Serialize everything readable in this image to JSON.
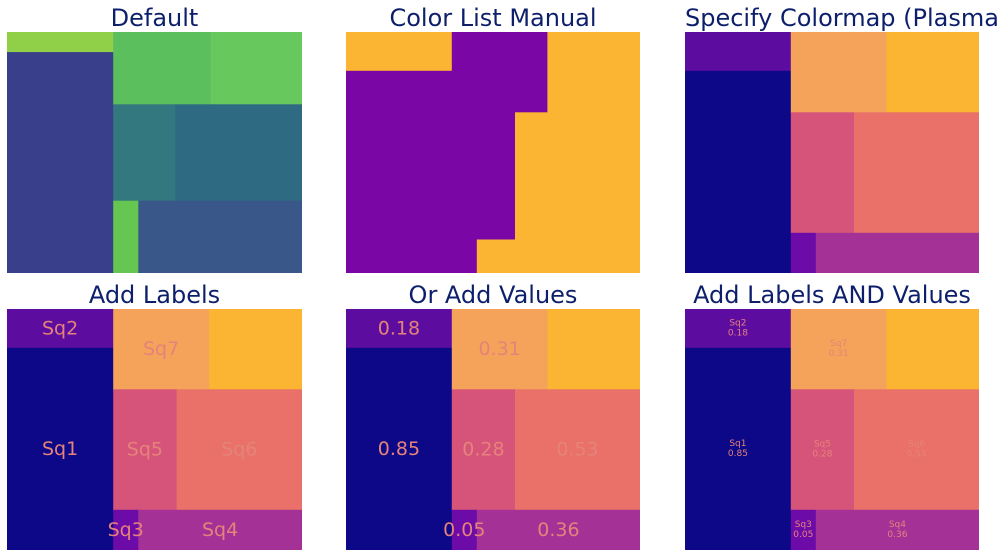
{
  "chart_data": [
    {
      "type": "treemap",
      "title": "Default",
      "squares": [
        {
          "x": 0,
          "y": 0,
          "w": 3.6,
          "h": 0.75,
          "color": "#8fd048"
        },
        {
          "x": 0,
          "y": 0.75,
          "w": 3.6,
          "h": 8.25,
          "color": "#3a3f8c"
        },
        {
          "x": 3.6,
          "y": 0,
          "w": 3.3,
          "h": 2.7,
          "color": "#5cbf5e"
        },
        {
          "x": 6.9,
          "y": 0,
          "w": 3.1,
          "h": 2.7,
          "color": "#67c95d"
        },
        {
          "x": 3.6,
          "y": 2.7,
          "w": 2.1,
          "h": 3.6,
          "color": "#33787f"
        },
        {
          "x": 5.7,
          "y": 2.7,
          "w": 4.3,
          "h": 3.6,
          "color": "#2e6b83"
        },
        {
          "x": 3.6,
          "y": 6.3,
          "w": 0.85,
          "h": 2.7,
          "color": "#65c651"
        },
        {
          "x": 4.45,
          "y": 6.3,
          "w": 5.55,
          "h": 2.7,
          "color": "#3a578a"
        }
      ]
    },
    {
      "type": "treemap",
      "title": "Color List Manual",
      "squares": [
        {
          "x": 0,
          "y": 0,
          "w": 3.6,
          "h": 1.45,
          "color": "#fbb533"
        },
        {
          "x": 0,
          "y": 1.45,
          "w": 3.6,
          "h": 7.55,
          "color": "#7a06a6"
        },
        {
          "x": 3.6,
          "y": 0,
          "w": 3.25,
          "h": 3.0,
          "color": "#7a06a6"
        },
        {
          "x": 6.85,
          "y": 0,
          "w": 3.15,
          "h": 3.0,
          "color": "#fbb533"
        },
        {
          "x": 3.6,
          "y": 3.0,
          "w": 2.15,
          "h": 4.75,
          "color": "#7a06a6"
        },
        {
          "x": 5.75,
          "y": 3.0,
          "w": 4.25,
          "h": 4.75,
          "color": "#fbb533"
        },
        {
          "x": 3.6,
          "y": 7.75,
          "w": 0.85,
          "h": 1.25,
          "color": "#7a06a6"
        },
        {
          "x": 4.45,
          "y": 7.75,
          "w": 5.55,
          "h": 1.25,
          "color": "#fbb533"
        }
      ]
    },
    {
      "type": "treemap",
      "title": "Specify Colormap (Plasma)",
      "squares": [
        {
          "x": 0,
          "y": 0,
          "w": 3.6,
          "h": 1.45,
          "color": "#5c0da0"
        },
        {
          "x": 0,
          "y": 1.45,
          "w": 3.6,
          "h": 7.55,
          "color": "#0d0887"
        },
        {
          "x": 3.6,
          "y": 0,
          "w": 3.25,
          "h": 3.0,
          "color": "#f5a25a"
        },
        {
          "x": 6.85,
          "y": 0,
          "w": 3.15,
          "h": 3.0,
          "color": "#fbb533"
        },
        {
          "x": 3.6,
          "y": 3.0,
          "w": 2.15,
          "h": 4.5,
          "color": "#d6547a"
        },
        {
          "x": 5.75,
          "y": 3.0,
          "w": 4.25,
          "h": 4.5,
          "color": "#e9716a"
        },
        {
          "x": 3.6,
          "y": 7.5,
          "w": 0.85,
          "h": 1.5,
          "color": "#6d0ba8"
        },
        {
          "x": 4.45,
          "y": 7.5,
          "w": 5.55,
          "h": 1.5,
          "color": "#a43296"
        }
      ]
    },
    {
      "type": "treemap",
      "title": "Add Labels",
      "squares": [
        {
          "x": 0,
          "y": 0,
          "w": 3.6,
          "h": 1.45,
          "color": "#5c0da0",
          "label": "Sq2",
          "text": "Sq2"
        },
        {
          "x": 0,
          "y": 1.45,
          "w": 3.6,
          "h": 7.55,
          "color": "#0d0887",
          "label": "Sq1",
          "text": "Sq1"
        },
        {
          "x": 3.6,
          "y": 0,
          "w": 3.25,
          "h": 3.0,
          "color": "#f5a25a",
          "label": "Sq7",
          "text": "Sq7"
        },
        {
          "x": 6.85,
          "y": 0,
          "w": 3.15,
          "h": 3.0,
          "color": "#fbb533"
        },
        {
          "x": 3.6,
          "y": 3.0,
          "w": 2.15,
          "h": 4.5,
          "color": "#d6547a",
          "label": "Sq5",
          "text": "Sq5"
        },
        {
          "x": 5.75,
          "y": 3.0,
          "w": 4.25,
          "h": 4.5,
          "color": "#e9716a",
          "label": "Sq6",
          "text": "Sq6"
        },
        {
          "x": 3.6,
          "y": 7.5,
          "w": 0.85,
          "h": 1.5,
          "color": "#6d0ba8",
          "label": "Sq3",
          "text": "Sq3"
        },
        {
          "x": 4.45,
          "y": 7.5,
          "w": 5.55,
          "h": 1.5,
          "color": "#a43296",
          "label": "Sq4",
          "text": "Sq4"
        }
      ]
    },
    {
      "type": "treemap",
      "title": "Or Add Values",
      "squares": [
        {
          "x": 0,
          "y": 0,
          "w": 3.6,
          "h": 1.45,
          "color": "#5c0da0",
          "value": 0.18,
          "text": "0.18"
        },
        {
          "x": 0,
          "y": 1.45,
          "w": 3.6,
          "h": 7.55,
          "color": "#0d0887",
          "value": 0.85,
          "text": "0.85"
        },
        {
          "x": 3.6,
          "y": 0,
          "w": 3.25,
          "h": 3.0,
          "color": "#f5a25a",
          "value": 0.31,
          "text": "0.31"
        },
        {
          "x": 6.85,
          "y": 0,
          "w": 3.15,
          "h": 3.0,
          "color": "#fbb533"
        },
        {
          "x": 3.6,
          "y": 3.0,
          "w": 2.15,
          "h": 4.5,
          "color": "#d6547a",
          "value": 0.28,
          "text": "0.28"
        },
        {
          "x": 5.75,
          "y": 3.0,
          "w": 4.25,
          "h": 4.5,
          "color": "#e9716a",
          "value": 0.53,
          "text": "0.53"
        },
        {
          "x": 3.6,
          "y": 7.5,
          "w": 0.85,
          "h": 1.5,
          "color": "#6d0ba8",
          "value": 0.05,
          "text": "0.05"
        },
        {
          "x": 4.45,
          "y": 7.5,
          "w": 5.55,
          "h": 1.5,
          "color": "#a43296",
          "value": 0.36,
          "text": "0.36"
        }
      ]
    },
    {
      "type": "treemap",
      "title": "Add Labels AND Values",
      "squares": [
        {
          "x": 0,
          "y": 0,
          "w": 3.6,
          "h": 1.45,
          "color": "#5c0da0",
          "label": "Sq2",
          "value": 0.18,
          "text": "Sq2 0.18"
        },
        {
          "x": 0,
          "y": 1.45,
          "w": 3.6,
          "h": 7.55,
          "color": "#0d0887",
          "label": "Sq1",
          "value": 0.85,
          "text": "Sq1 0.85"
        },
        {
          "x": 3.6,
          "y": 0,
          "w": 3.25,
          "h": 3.0,
          "color": "#f5a25a",
          "label": "Sq7",
          "value": 0.31,
          "text": "Sq7 0.31"
        },
        {
          "x": 6.85,
          "y": 0,
          "w": 3.15,
          "h": 3.0,
          "color": "#fbb533"
        },
        {
          "x": 3.6,
          "y": 3.0,
          "w": 2.15,
          "h": 4.5,
          "color": "#d6547a",
          "label": "Sq5",
          "value": 0.28,
          "text": "Sq5 0.28"
        },
        {
          "x": 5.75,
          "y": 3.0,
          "w": 4.25,
          "h": 4.5,
          "color": "#e9716a",
          "label": "Sq6",
          "value": 0.53,
          "text": "Sq6 0.53"
        },
        {
          "x": 3.6,
          "y": 7.5,
          "w": 0.85,
          "h": 1.5,
          "color": "#6d0ba8",
          "label": "Sq3",
          "value": 0.05,
          "text": "Sq3 0.05"
        },
        {
          "x": 4.45,
          "y": 7.5,
          "w": 5.55,
          "h": 1.5,
          "color": "#a43296",
          "label": "Sq4",
          "value": 0.36,
          "text": "Sq4 0.36"
        }
      ]
    }
  ],
  "label_color": "#e5837a",
  "title_color": "#0d1f6b",
  "domain": {
    "x": [
      0,
      10
    ],
    "y": [
      0,
      9
    ]
  }
}
